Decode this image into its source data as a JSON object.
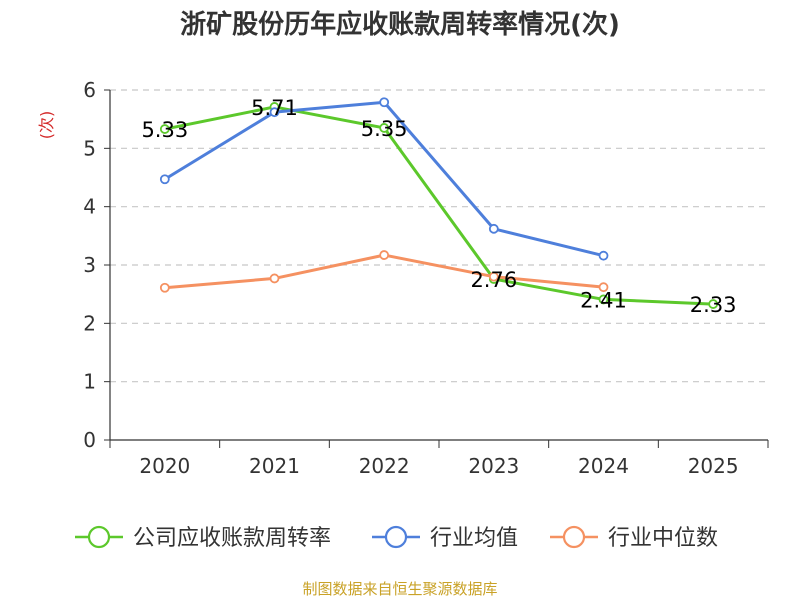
{
  "chart_data": {
    "type": "line",
    "title": "浙矿股份历年应收账款周转率情况(次)",
    "ylabel": "(次)",
    "xlabel": "",
    "categories": [
      "2020",
      "2021",
      "2022",
      "2023",
      "2024",
      "2025"
    ],
    "ylim": [
      0,
      6
    ],
    "yticks": [
      0,
      1,
      2,
      3,
      4,
      5,
      6
    ],
    "grid": true,
    "legend_position": "bottom",
    "series": [
      {
        "name": "公司应收账款周转率",
        "color": "#5cc82b",
        "values": [
          5.33,
          5.71,
          5.35,
          2.76,
          2.41,
          2.33
        ],
        "labels": [
          "5.33",
          "5.71",
          "5.35",
          "2.76",
          "2.41",
          "2.33"
        ]
      },
      {
        "name": "行业均值",
        "color": "#4e7fdb",
        "values": [
          4.47,
          5.62,
          5.79,
          3.62,
          3.16,
          null
        ]
      },
      {
        "name": "行业中位数",
        "color": "#f59161",
        "values": [
          2.61,
          2.77,
          3.17,
          2.8,
          2.62,
          null
        ]
      }
    ]
  },
  "source": "制图数据来自恒生聚源数据库"
}
